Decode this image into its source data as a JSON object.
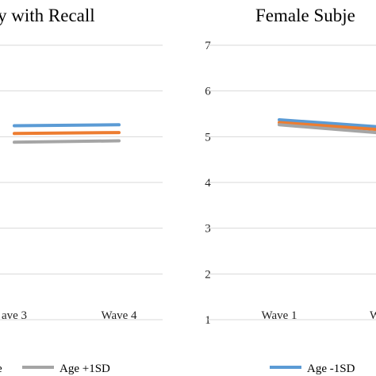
{
  "chart_data": [
    {
      "type": "line",
      "title": "y with Recall",
      "categories": [
        "ave 3",
        "Wave 4"
      ],
      "ylim": [
        1,
        7
      ],
      "grid": true,
      "series": [
        {
          "name": "",
          "color": "#5B9BD5",
          "values": [
            5.24,
            5.26
          ]
        },
        {
          "name": "",
          "color": "#ED7D31",
          "values": [
            5.07,
            5.09
          ]
        },
        {
          "name": "Age +1SD",
          "color": "#A5A5A5",
          "values": [
            4.88,
            4.91
          ]
        }
      ],
      "legend_text": "e",
      "legend_position": "bottom"
    },
    {
      "type": "line",
      "title": "Female Subje",
      "categories": [
        "Wave 1",
        "W"
      ],
      "yticks": [
        "7",
        "6",
        "5",
        "4",
        "3",
        "2",
        "1"
      ],
      "ylim": [
        1,
        7
      ],
      "grid": true,
      "series": [
        {
          "name": "Age -1SD",
          "color": "#5B9BD5",
          "values": [
            5.37,
            5.22
          ]
        },
        {
          "name": "",
          "color": "#ED7D31",
          "values": [
            5.31,
            5.16
          ]
        },
        {
          "name": "",
          "color": "#A5A5A5",
          "values": [
            5.26,
            5.09
          ]
        }
      ],
      "legend_position": "bottom"
    }
  ]
}
